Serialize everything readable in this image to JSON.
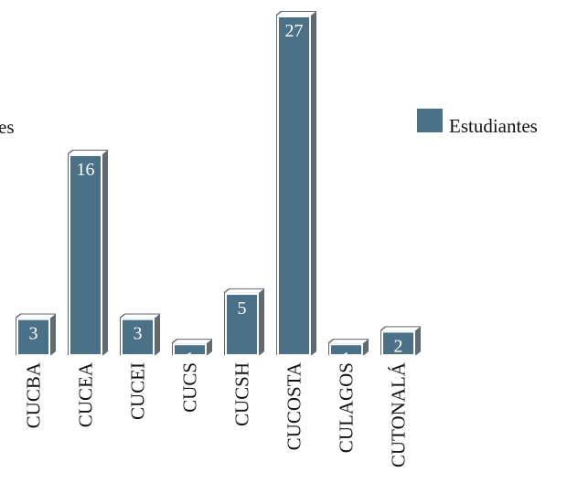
{
  "chart_data": {
    "type": "bar",
    "categories": [
      "CUCBA",
      "CUCEA",
      "CUCEI",
      "CUCS",
      "CUCSH",
      "CUCOSTA",
      "CULAGOS",
      "CUTONALÁ"
    ],
    "series": [
      {
        "name": "Estudiantes",
        "values": [
          3,
          16,
          3,
          1,
          5,
          27,
          1,
          2
        ]
      }
    ],
    "ylim": [
      0,
      27
    ],
    "grid": false,
    "legend_position": "right",
    "partial_left_text": "es",
    "colors": {
      "bar": "#4b7189",
      "bar_outline": "#ffffff",
      "shadow": "#5f6a73",
      "text": "#111111"
    }
  }
}
